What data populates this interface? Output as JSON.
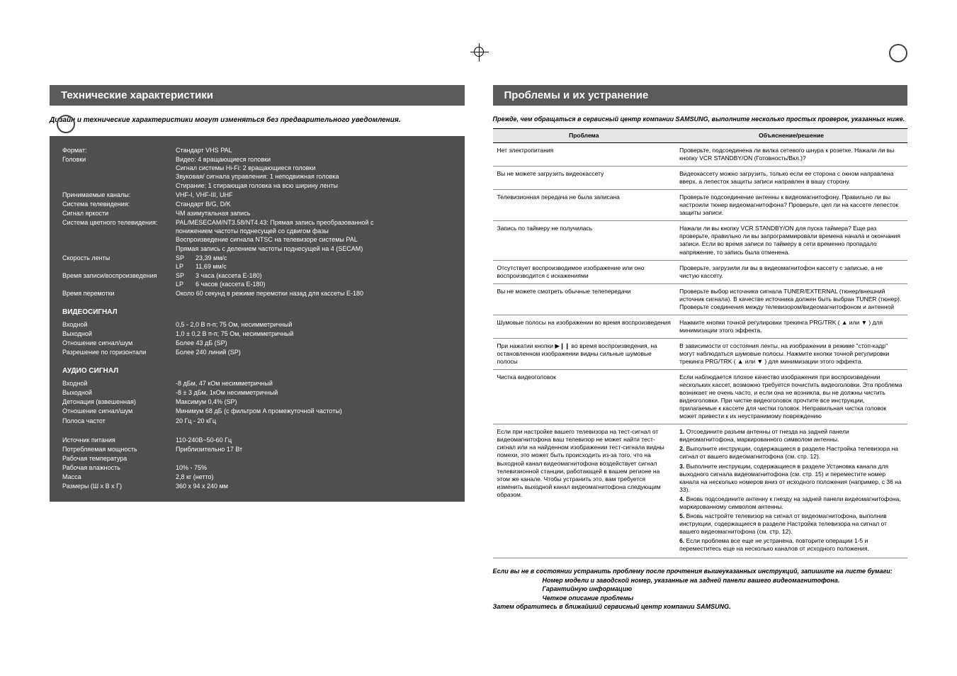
{
  "left": {
    "header": "Технические характеристики",
    "notice": "Дизайн и технические характеристики могут изменяться без предварительного уведомления.",
    "general": [
      {
        "label": "Формат:",
        "value": "Стандарт VHS PAL"
      },
      {
        "label": "Головки",
        "values": [
          "Видео: 4 вращающиеся головки",
          "Сигнал системы Hi-Fi: 2 вращающиеся головки",
          "Звуковая/ сигнала управления: 1 неподвижная головка",
          "Стирание: 1 стирающая головка на всю ширину ленты"
        ]
      },
      {
        "label": "Принимаемые каналы:",
        "value": "VHF-I, VHF-III, UHF"
      },
      {
        "label": "Система телевидения:",
        "value": "Стандарт B/G, D/K"
      },
      {
        "label": "Сигнал яркости",
        "value": "ЧМ азимутальная запись"
      },
      {
        "label": "Система цветного телевидения:",
        "values": [
          "PAL/MESECAM/NT3.58/NT4.43: Прямая запись преобразованной с",
          "понижением частоты поднесущей со сдвигом фазы",
          "Воспроизведение сигнала NTSC на телевизоре системы PAL",
          "Прямая запись с делением частоты поднесущей на 4 (SECAM)"
        ]
      },
      {
        "label": "Скорость ленты",
        "kv": [
          {
            "k": "SP",
            "v": "23,39 мм/с"
          },
          {
            "k": "LP",
            "v": "11,69 мм/с"
          }
        ]
      },
      {
        "label": "Время записи/воспроизведения",
        "kv": [
          {
            "k": "SP",
            "v": "3 часа (кассета E-180)"
          },
          {
            "k": "LP",
            "v": "6 часов (кассета E-180)"
          }
        ]
      },
      {
        "label": "Время перемотки",
        "value": "Около 60 секунд в режиме перемотки назад для кассеты E-180"
      }
    ],
    "video_title": "ВИДЕОСИГНАЛ",
    "video": [
      {
        "label": "Входной",
        "value": "0,5 - 2,0 В п-п; 75 Ом, несимметричный"
      },
      {
        "label": "Выходной",
        "value": "1,0 ± 0,2 В п-п; 75 Ом, несимметричный"
      },
      {
        "label": "Отношение сигнал/шум",
        "value": "Более 43 дБ (SP)"
      },
      {
        "label": "Разрешение по горизонтали",
        "value": "Более 240 линий (SP)"
      }
    ],
    "audio_title": "АУДИО СИГНАЛ",
    "audio": [
      {
        "label": "Входной",
        "value": "-8 дБм, 47 кОм несимметричный"
      },
      {
        "label": "Выходной",
        "value": "-8 ± 3 дБм, 1кОм несимметричный"
      },
      {
        "label": "Детонация (взвешенная)",
        "value": "Максимум 0,4% (SP)"
      },
      {
        "label": "Отношение сигнал/шум",
        "value": "Минимум 68 дБ (с фильтром A промежуточной частоты)"
      },
      {
        "label": "Полоса частот",
        "value": "20 Гц - 20 кГц"
      }
    ],
    "misc": [
      {
        "label": "Источник питания",
        "value": "110-240В~50-60 Гц"
      },
      {
        "label": "Потребляемая мощность",
        "value": "Приблизительно 17 Вт"
      },
      {
        "label": "Рабочая температура",
        "value": ""
      },
      {
        "label": "Рабочая влажность",
        "value": "10% - 75%"
      },
      {
        "label": "Масса",
        "value": "2,8 кг (нетто)"
      },
      {
        "label": "Размеры (Ш x В x Г)",
        "value": "360 x 94 x 240 мм"
      }
    ]
  },
  "right": {
    "header": "Проблемы и их устранение",
    "intro": "Прежде, чем обращаться в сервисный центр компании SAMSUNG, выполните несколько простых проверок, указанных ниже.",
    "th_problem": "Проблема",
    "th_solution": "Объяснение/решение",
    "rows": [
      {
        "p": "Нет электропитания",
        "s": "Проверьте, подсоединена ли вилка сетевого шнура к розетке. Нажали ли вы кнопку VCR STANDBY/ON (Готовность/Вкл.)?"
      },
      {
        "p": "Вы не можете загрузить видеокассету",
        "s": "Видеокассету можно загрузить, только если ее сторона с окном направлена вверх, а лепесток защиты записи направлен в вашу сторону."
      },
      {
        "p": "Телевизионная передача не была записана",
        "s": "Проверьте подсоединение антенны к видеомагнитофону. Правильно ли вы настроили тюнер видеомагнитофона? Проверьте, цел ли на кассете лепесток защиты записи."
      },
      {
        "p": "Запись по таймеру не получилась",
        "s": "Нажали ли вы кнопку VCR STANDBY/ON для пуска таймера? Еще раз проверьте, правильно ли вы запрограммировали времена начала и окончания записи. Если во время записи по таймеру в сети временно пропадало напряжение, то запись была отменена."
      },
      {
        "p": "Отсутствует воспроизводимое изображение или оно воспроизводится с искажениями",
        "s": "Проверьте, загрузили ли вы в видеомагнитофон кассету с записью, а не чистую кассету."
      },
      {
        "p": "Вы не можете смотреть обычные телепередачи",
        "s": "Проверьте выбор источника сигнала TUNER/EXTERNAL (тюнер/внешний источник сигнала). В качестве источника должен быть выбран TUNER (тюнер). Проверьте соединения между телевизором/видеомагнитофоном и антенной"
      },
      {
        "p": "Шумовые полосы на изображении во время воспроизведения",
        "s": "Нажмите кнопки точной регулировки трекинга PRG/TRK ( ▲ или ▼ ) для минимизации этого эффекта."
      },
      {
        "p": "При нажатии кнопки ▶❙❙ во время воспроизведения, на остановленном изображении видны сильные шумовые полосы",
        "s": "В зависимости от состояния ленты, на изображении в режиме \"стоп-кадр\" могут наблюдаться шумовые полосы. Нажмите кнопки точной регулировки трекинга PRG/TRK ( ▲ или ▼ ) для минимизации этого эффекта."
      },
      {
        "p": "Чистка видеоголовок",
        "s": "Если наблюдается плохое качество изображения при воспроизведении нескольких кассет, возможно требуется почистить видеоголовки. Эта проблема возникает не очень часто, и если она не возникла, вы не должны чистить видеоголовки. При чистке видеоголовок прочтите все инструкции, прилагаемые к кассете для чистки головок. Неправильная чистка головок может привести к их неустранимому повреждению"
      }
    ],
    "last_problem": "Если при настройке вашего телевизора на тест-сигнал от видеомагнитофона ваш телевизор не может найти тест-сигнал или на найденном изображении тест-сигнала видны помехи, это может быть происходить из-за того, что на выходной канал видеомагнитофона воздействует сигнал телевизионной станции, работающей в вашем регионе на этом же канале. Чтобы устранить это, вам требуется изменить выходной канал видеомагнитофона следующим образом.",
    "steps": [
      "Отсоедините разъем антенны от гнезда на задней панели видеомагнитофона, маркированного символом антенны.",
      "Выполните инструкции, содержащиеся в разделе  Настройка телевизора на сигнал от вашего видеомагнитофона  (см. стр. 12).",
      "Выполните инструкции, содержащиеся в разделе  Установка канала для выходного сигнала видеомагнитофона  (см. стр. 15) и переместите номер канала на несколько номеров вниз от исходного положения (например, с 36 на 33).",
      "Вновь подсоедините антенну к гнезду на задней панели видеомагнитофона, маркированному символом антенны.",
      "Вновь настройте телевизор на сигнал от видеомагнитофона, выполнив инструкции, содержащиеся в разделе  Настройка телевизора на сигнал от вашего видеомагнитофона  (см. стр. 12).",
      "Если проблема все еще не устранена, повторите операции 1-5 и переместитесь еще на несколько каналов от исходного положения."
    ],
    "footer1": "Если вы не в состоянии устранить проблему после прочтения вышеуказанных инструкций, запишите на листе бумаги:",
    "footer_items": [
      "Номер модели и заводской номер, указанные на задней панели вашего видеомагнитофона.",
      "Гарантийную информацию",
      "Четкое описание проблемы"
    ],
    "footer2": "Затем обратитесь в ближайший сервисный центр компании SAMSUNG."
  }
}
